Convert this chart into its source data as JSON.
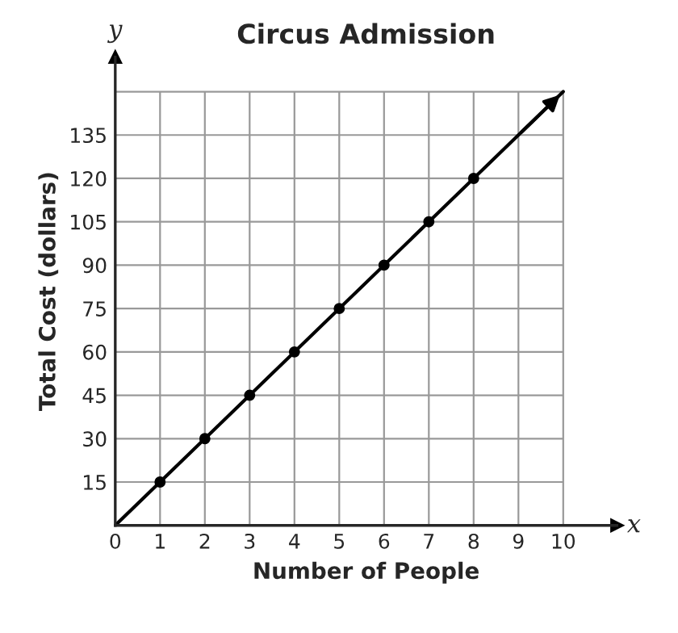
{
  "chart_data": {
    "type": "line",
    "title": "Circus Admission",
    "xlabel": "Number of People",
    "ylabel": "Total Cost (dollars)",
    "annotations": [
      "x",
      "y"
    ],
    "series": [
      {
        "color": "#000000",
        "x": [
          0,
          10
        ],
        "values": [
          0,
          150
        ],
        "marker": "none"
      },
      {
        "type": "scatter",
        "color": "#000000",
        "x": [
          1,
          2,
          3,
          4,
          5,
          6,
          7,
          8
        ],
        "values": [
          15,
          30,
          45,
          60,
          75,
          90,
          105,
          120
        ],
        "marker": "circle"
      }
    ],
    "xlim": [
      0,
      11.2
    ],
    "ylim": [
      0,
      162
    ],
    "xticks": [
      0,
      1,
      2,
      3,
      4,
      5,
      6,
      7,
      8,
      9,
      10
    ],
    "yticks": [
      {
        "value": 0,
        "label": null
      },
      15,
      30,
      45,
      60,
      75,
      90,
      105,
      120,
      135,
      {
        "value": 150,
        "label": null
      }
    ],
    "grid": true
  }
}
